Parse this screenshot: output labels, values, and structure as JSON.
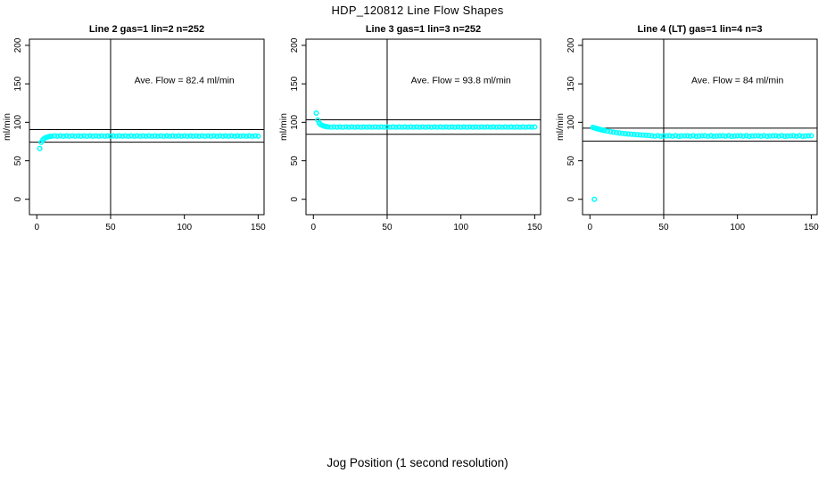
{
  "figure": {
    "title": "HDP_120812  Line Flow Shapes",
    "xlabel": "Jog Position (1 second resolution)"
  },
  "chart_data": [
    {
      "type": "scatter",
      "title": "Line 2 gas=1 lin=2 n=252",
      "ylabel": "ml/min",
      "xlim": [
        0,
        150
      ],
      "ylim": [
        0,
        200
      ],
      "xticks": [
        0,
        50,
        100,
        150
      ],
      "yticks": [
        0,
        50,
        100,
        150,
        200
      ],
      "grid": false,
      "vline_x": 50,
      "hlines": [
        90.6,
        74.2
      ],
      "annotation": "Ave. Flow =  82.4  ml/min",
      "ave_flow": 82.4,
      "n": 252,
      "point_color": "#00FFFF",
      "axis_color": "#000000",
      "points": [
        [
          2,
          66
        ],
        [
          3,
          74
        ],
        [
          4,
          77
        ],
        [
          5,
          79
        ],
        [
          6,
          80
        ],
        [
          7,
          80.8
        ],
        [
          8,
          81.3
        ],
        [
          9,
          81.7
        ],
        [
          10,
          82
        ],
        [
          12,
          82.4
        ],
        [
          14,
          82
        ],
        [
          16,
          82.4
        ],
        [
          18,
          82
        ],
        [
          20,
          82.4
        ],
        [
          22,
          82
        ],
        [
          24,
          82.4
        ],
        [
          26,
          82
        ],
        [
          28,
          82.4
        ],
        [
          30,
          82
        ],
        [
          32,
          82.4
        ],
        [
          34,
          82
        ],
        [
          36,
          82.4
        ],
        [
          38,
          82
        ],
        [
          40,
          82.4
        ],
        [
          42,
          82
        ],
        [
          44,
          82.4
        ],
        [
          46,
          82
        ],
        [
          48,
          82.4
        ],
        [
          50,
          82
        ],
        [
          52,
          82.4
        ],
        [
          54,
          82
        ],
        [
          56,
          82.4
        ],
        [
          58,
          82
        ],
        [
          60,
          82.4
        ],
        [
          62,
          82
        ],
        [
          64,
          82.4
        ],
        [
          66,
          82
        ],
        [
          68,
          82.4
        ],
        [
          70,
          82
        ],
        [
          72,
          82.4
        ],
        [
          74,
          82
        ],
        [
          76,
          82.4
        ],
        [
          78,
          82
        ],
        [
          80,
          82.4
        ],
        [
          82,
          82
        ],
        [
          84,
          82.4
        ],
        [
          86,
          82
        ],
        [
          88,
          82.4
        ],
        [
          90,
          82
        ],
        [
          92,
          82.4
        ],
        [
          94,
          82
        ],
        [
          96,
          82.4
        ],
        [
          98,
          82
        ],
        [
          100,
          82.4
        ],
        [
          102,
          82
        ],
        [
          104,
          82.4
        ],
        [
          106,
          82
        ],
        [
          108,
          82.4
        ],
        [
          110,
          82
        ],
        [
          112,
          82.4
        ],
        [
          114,
          82
        ],
        [
          116,
          82.4
        ],
        [
          118,
          82
        ],
        [
          120,
          82.4
        ],
        [
          122,
          82
        ],
        [
          124,
          82.4
        ],
        [
          126,
          82
        ],
        [
          128,
          82.4
        ],
        [
          130,
          82
        ],
        [
          132,
          82.4
        ],
        [
          134,
          82
        ],
        [
          136,
          82.4
        ],
        [
          138,
          82
        ],
        [
          140,
          82.4
        ],
        [
          142,
          82
        ],
        [
          144,
          82.4
        ],
        [
          146,
          82
        ],
        [
          148,
          82.4
        ],
        [
          150,
          82
        ]
      ]
    },
    {
      "type": "scatter",
      "title": "Line 3 gas=1 lin=3 n=252",
      "ylabel": "ml/min",
      "xlim": [
        0,
        150
      ],
      "ylim": [
        0,
        200
      ],
      "xticks": [
        0,
        50,
        100,
        150
      ],
      "yticks": [
        0,
        50,
        100,
        150,
        200
      ],
      "grid": false,
      "vline_x": 50,
      "hlines": [
        103.2,
        84.4
      ],
      "annotation": "Ave. Flow =  93.8  ml/min",
      "ave_flow": 93.8,
      "n": 252,
      "point_color": "#00FFFF",
      "axis_color": "#000000",
      "points": [
        [
          2,
          112
        ],
        [
          3,
          103
        ],
        [
          4,
          99
        ],
        [
          5,
          97
        ],
        [
          6,
          96
        ],
        [
          7,
          95.3
        ],
        [
          8,
          94.8
        ],
        [
          9,
          94.4
        ],
        [
          10,
          94
        ],
        [
          12,
          93.7
        ],
        [
          14,
          94
        ],
        [
          16,
          93.7
        ],
        [
          18,
          94
        ],
        [
          20,
          93.7
        ],
        [
          22,
          94
        ],
        [
          24,
          93.7
        ],
        [
          26,
          94
        ],
        [
          28,
          93.7
        ],
        [
          30,
          94
        ],
        [
          32,
          93.7
        ],
        [
          34,
          94
        ],
        [
          36,
          93.7
        ],
        [
          38,
          94
        ],
        [
          40,
          93.7
        ],
        [
          42,
          94
        ],
        [
          44,
          93.7
        ],
        [
          46,
          94
        ],
        [
          48,
          93.7
        ],
        [
          50,
          94
        ],
        [
          52,
          93.7
        ],
        [
          54,
          94
        ],
        [
          56,
          93.7
        ],
        [
          58,
          94
        ],
        [
          60,
          93.7
        ],
        [
          62,
          94
        ],
        [
          64,
          93.7
        ],
        [
          66,
          94
        ],
        [
          68,
          93.7
        ],
        [
          70,
          94
        ],
        [
          72,
          93.7
        ],
        [
          74,
          94
        ],
        [
          76,
          93.7
        ],
        [
          78,
          94
        ],
        [
          80,
          93.7
        ],
        [
          82,
          94
        ],
        [
          84,
          93.7
        ],
        [
          86,
          94
        ],
        [
          88,
          93.7
        ],
        [
          90,
          94
        ],
        [
          92,
          93.7
        ],
        [
          94,
          94
        ],
        [
          96,
          93.7
        ],
        [
          98,
          94
        ],
        [
          100,
          93.7
        ],
        [
          102,
          94
        ],
        [
          104,
          93.7
        ],
        [
          106,
          94
        ],
        [
          108,
          93.7
        ],
        [
          110,
          94
        ],
        [
          112,
          93.7
        ],
        [
          114,
          94
        ],
        [
          116,
          93.7
        ],
        [
          118,
          94
        ],
        [
          120,
          93.7
        ],
        [
          122,
          94
        ],
        [
          124,
          93.7
        ],
        [
          126,
          94
        ],
        [
          128,
          93.7
        ],
        [
          130,
          94
        ],
        [
          132,
          93.7
        ],
        [
          134,
          94
        ],
        [
          136,
          93.7
        ],
        [
          138,
          94
        ],
        [
          140,
          93.7
        ],
        [
          142,
          94
        ],
        [
          144,
          93.7
        ],
        [
          146,
          94
        ],
        [
          148,
          93.7
        ],
        [
          150,
          94
        ]
      ]
    },
    {
      "type": "scatter",
      "title": "Line 4 (LT) gas=1 lin=4 n=3",
      "ylabel": "ml/min",
      "xlim": [
        0,
        150
      ],
      "ylim": [
        0,
        200
      ],
      "xticks": [
        0,
        50,
        100,
        150
      ],
      "yticks": [
        0,
        50,
        100,
        150,
        200
      ],
      "grid": false,
      "vline_x": 50,
      "hlines": [
        92.4,
        75.6
      ],
      "annotation": "Ave. Flow =  84  ml/min",
      "ave_flow": 84,
      "n": 3,
      "point_color": "#00FFFF",
      "axis_color": "#000000",
      "points": [
        [
          3,
          0
        ],
        [
          2,
          93.5
        ],
        [
          3,
          92.8
        ],
        [
          4,
          92.2
        ],
        [
          5,
          91.6
        ],
        [
          6,
          91.1
        ],
        [
          7,
          90.6
        ],
        [
          8,
          90.1
        ],
        [
          9,
          89.7
        ],
        [
          10,
          89.3
        ],
        [
          12,
          88.5
        ],
        [
          14,
          87.8
        ],
        [
          16,
          87.2
        ],
        [
          18,
          86.6
        ],
        [
          20,
          86.1
        ],
        [
          22,
          85.6
        ],
        [
          24,
          85.2
        ],
        [
          26,
          84.8
        ],
        [
          28,
          84.5
        ],
        [
          30,
          84.2
        ],
        [
          32,
          83.9
        ],
        [
          34,
          83.6
        ],
        [
          36,
          83.4
        ],
        [
          38,
          83.2
        ],
        [
          40,
          83
        ],
        [
          42,
          82.5
        ],
        [
          44,
          82
        ],
        [
          46,
          82.6
        ],
        [
          48,
          81.9
        ],
        [
          50,
          82.2
        ],
        [
          52,
          82.4
        ],
        [
          54,
          82.5
        ],
        [
          56,
          82
        ],
        [
          58,
          82.6
        ],
        [
          60,
          81.9
        ],
        [
          62,
          82.2
        ],
        [
          64,
          82.4
        ],
        [
          66,
          82.5
        ],
        [
          68,
          82
        ],
        [
          70,
          82.6
        ],
        [
          72,
          81.9
        ],
        [
          74,
          82.2
        ],
        [
          76,
          82.4
        ],
        [
          78,
          82.5
        ],
        [
          80,
          82
        ],
        [
          82,
          82.6
        ],
        [
          84,
          81.9
        ],
        [
          86,
          82.2
        ],
        [
          88,
          82.4
        ],
        [
          90,
          82.5
        ],
        [
          92,
          82
        ],
        [
          94,
          82.6
        ],
        [
          96,
          81.9
        ],
        [
          98,
          82.2
        ],
        [
          100,
          82.4
        ],
        [
          102,
          82.5
        ],
        [
          104,
          82
        ],
        [
          106,
          82.6
        ],
        [
          108,
          81.9
        ],
        [
          110,
          82.2
        ],
        [
          112,
          82.4
        ],
        [
          114,
          82.5
        ],
        [
          116,
          82
        ],
        [
          118,
          82.6
        ],
        [
          120,
          81.9
        ],
        [
          122,
          82.2
        ],
        [
          124,
          82.4
        ],
        [
          126,
          82.5
        ],
        [
          128,
          82
        ],
        [
          130,
          82.6
        ],
        [
          132,
          81.9
        ],
        [
          134,
          82.2
        ],
        [
          136,
          82.4
        ],
        [
          138,
          82.5
        ],
        [
          140,
          82
        ],
        [
          142,
          82.6
        ],
        [
          144,
          81.9
        ],
        [
          146,
          82.2
        ],
        [
          148,
          82.4
        ],
        [
          150,
          82.5
        ]
      ]
    }
  ]
}
